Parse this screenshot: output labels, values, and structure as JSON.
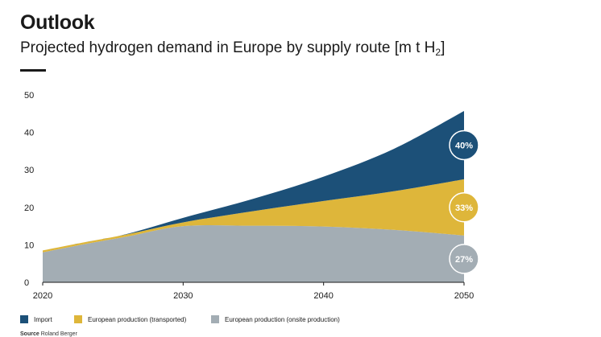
{
  "header": {
    "title": "Outlook",
    "subtitle": "Projected hydrogen demand in Europe by supply route [m t H",
    "subtitle_sub": "2",
    "subtitle_end": "]"
  },
  "source": {
    "label": "Source",
    "text": "Roland Berger"
  },
  "chart_data": {
    "type": "area",
    "stacked": true,
    "title": "Projected hydrogen demand in Europe by supply route [m t H2]",
    "x": [
      2020,
      2023,
      2026,
      2030,
      2035,
      2040,
      2045,
      2050
    ],
    "x_ticks": [
      2020,
      2030,
      2040,
      2050
    ],
    "y_ticks": [
      0,
      10,
      20,
      30,
      40,
      50
    ],
    "ylim": [
      0,
      50
    ],
    "xlim": [
      2020,
      2050
    ],
    "grid": false,
    "legend_position": "bottom",
    "series": [
      {
        "name": "European production (onsite production)",
        "color": "#a3adb4",
        "values": [
          8,
          10.2,
          12.2,
          15.0,
          15.1,
          14.9,
          14.0,
          12.5
        ]
      },
      {
        "name": "European production (transported)",
        "color": "#deb63a",
        "values": [
          0.5,
          0.5,
          0.6,
          1.0,
          3.9,
          6.8,
          10.3,
          15.0
        ]
      },
      {
        "name": "Import",
        "color": "#1c5078",
        "values": [
          0,
          0,
          0.1,
          1.2,
          3.3,
          6.5,
          11.3,
          18.2
        ]
      }
    ],
    "end_labels": [
      {
        "series": "Import",
        "text": "40%",
        "fill": "#1c5078",
        "text_color": "#ffffff",
        "stroke": "#ffffff"
      },
      {
        "series": "European production (transported)",
        "text": "33%",
        "fill": "#deb63a",
        "text_color": "#ffffff",
        "stroke": "#ffffff"
      },
      {
        "series": "European production (onsite production)",
        "text": "27%",
        "fill": "#a3adb4",
        "text_color": "#ffffff",
        "stroke": "#ffffff"
      }
    ]
  },
  "legend": [
    {
      "label": "Import",
      "color": "#1c5078"
    },
    {
      "label": "European production (transported)",
      "color": "#deb63a"
    },
    {
      "label": "European production (onsite production)",
      "color": "#a3adb4"
    }
  ]
}
